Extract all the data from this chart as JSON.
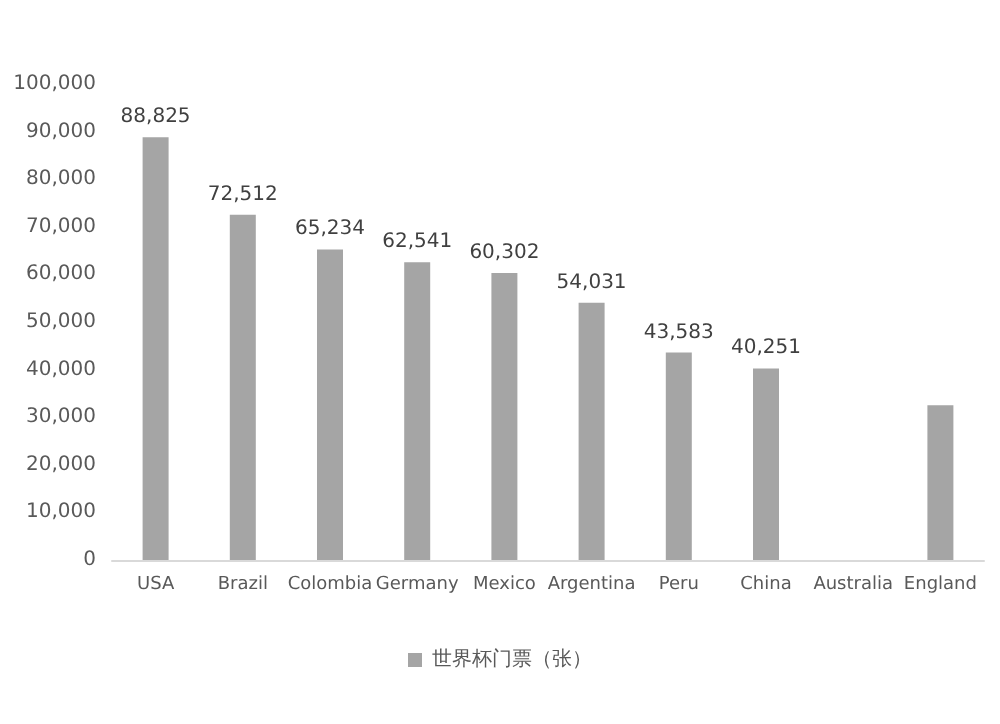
{
  "chart_data": {
    "type": "bar",
    "categories": [
      "USA",
      "Brazil",
      "Colombia",
      "Germany",
      "Mexico",
      "Argentina",
      "Peru",
      "China",
      "Australia",
      "England"
    ],
    "series": [
      {
        "name": "世界杯门票（张）",
        "color": "#a5a5a5",
        "values": [
          88825,
          72512,
          65234,
          62541,
          60302,
          54031,
          43583,
          40251,
          null,
          32500
        ],
        "value_labels": [
          "88,825",
          "72,512",
          "65,234",
          "62,541",
          "60,302",
          "54,031",
          "43,583",
          "40,251",
          null,
          null
        ]
      }
    ],
    "ylim": [
      0,
      100000
    ],
    "yticks": [
      0,
      {
        "value": 10000,
        "label": "10,000"
      },
      {
        "value": 20000,
        "label": "20,000"
      },
      {
        "value": 30000,
        "label": "30,000"
      },
      {
        "value": 40000,
        "label": "40,000"
      },
      {
        "value": 50000,
        "label": "50,000"
      },
      {
        "value": 60000,
        "label": "60,000"
      },
      {
        "value": 70000,
        "label": "70,000"
      },
      {
        "value": 80000,
        "label": "80,000"
      },
      {
        "value": 90000,
        "label": "90,000"
      },
      {
        "value": 100000,
        "label": "100,000"
      }
    ],
    "grid": false,
    "legend": "bottom"
  }
}
